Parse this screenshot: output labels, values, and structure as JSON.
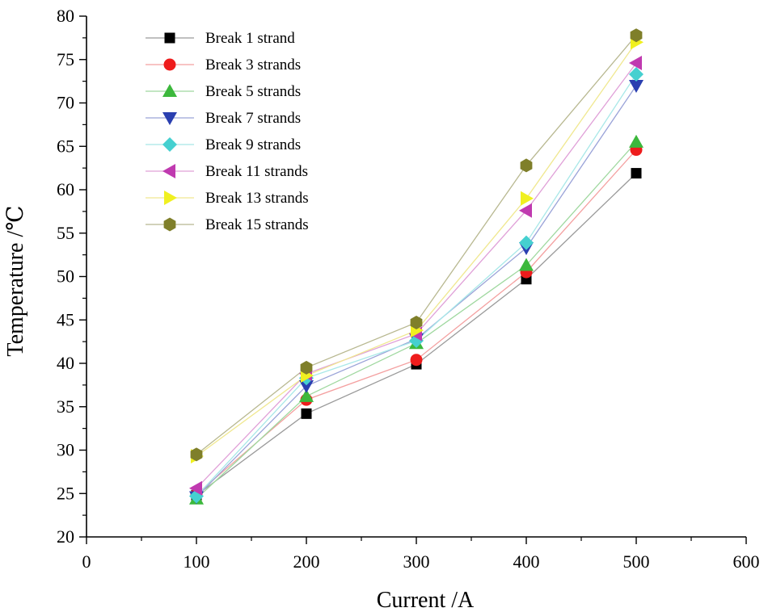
{
  "chart_data": {
    "type": "line",
    "title": "",
    "xlabel": "Current /A",
    "ylabel": "Temperature /℃",
    "xlim": [
      0,
      600
    ],
    "ylim": [
      20,
      80
    ],
    "xticks": [
      "0",
      "100",
      "200",
      "300",
      "400",
      "500",
      "600"
    ],
    "yticks": [
      "20",
      "25",
      "30",
      "35",
      "40",
      "45",
      "50",
      "55",
      "60",
      "65",
      "70",
      "75",
      "80"
    ],
    "x": [
      100,
      200,
      300,
      400,
      500
    ],
    "grid": false,
    "legend_position": "top-left",
    "series": [
      {
        "name": "Break 1 strand",
        "marker": "square",
        "marker_color": "#000000",
        "line_color": "#9a9a9a",
        "values": [
          24.8,
          34.2,
          39.9,
          49.7,
          61.9
        ]
      },
      {
        "name": "Break 3 strands",
        "marker": "circle",
        "marker_color": "#ee1c1c",
        "line_color": "#f4a0a0",
        "values": [
          24.9,
          35.8,
          40.4,
          50.5,
          64.6
        ]
      },
      {
        "name": "Break 5 strands",
        "marker": "triangle-up",
        "marker_color": "#3cb83c",
        "line_color": "#9fd89f",
        "values": [
          24.4,
          36.2,
          42.3,
          51.3,
          65.5
        ]
      },
      {
        "name": "Break 7 strands",
        "marker": "triangle-down",
        "marker_color": "#2a3fb0",
        "line_color": "#9aa3d8",
        "values": [
          24.6,
          37.4,
          42.8,
          53.3,
          72.0
        ]
      },
      {
        "name": "Break 9 strands",
        "marker": "diamond",
        "marker_color": "#45d0d0",
        "line_color": "#a8e8e8",
        "values": [
          24.7,
          38.3,
          42.6,
          53.9,
          73.3
        ]
      },
      {
        "name": "Break 11 strands",
        "marker": "triangle-left",
        "marker_color": "#c03ab0",
        "line_color": "#e0a0d8",
        "values": [
          25.6,
          38.8,
          43.4,
          57.6,
          74.6
        ]
      },
      {
        "name": "Break 13 strands",
        "marker": "triangle-right",
        "marker_color": "#f0f020",
        "line_color": "#f0e890",
        "values": [
          29.3,
          38.6,
          43.8,
          59.0,
          77.0
        ]
      },
      {
        "name": "Break 15 strands",
        "marker": "hexagon",
        "marker_color": "#7f7f2a",
        "line_color": "#b8b890",
        "values": [
          29.5,
          39.5,
          44.7,
          62.8,
          77.8
        ]
      }
    ]
  }
}
